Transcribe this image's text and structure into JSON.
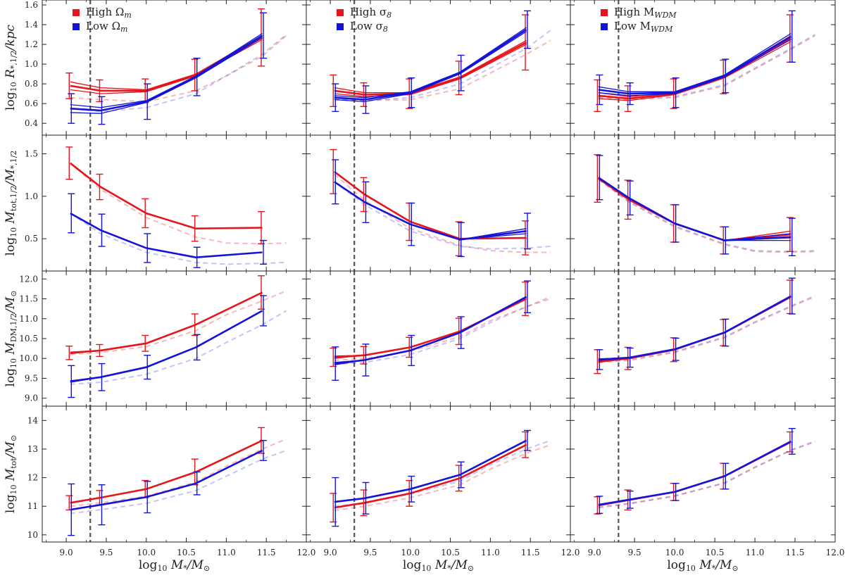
{
  "chart_data": {
    "type": "line",
    "layout": "grid 4 rows x 3 columns, shared x axis",
    "colors": {
      "high": "#e8141c",
      "low": "#1414d8",
      "threshold": "#555555"
    },
    "x": [
      9.05,
      9.43,
      10.0,
      10.62,
      11.45
    ],
    "xlim": [
      8.7,
      12.0
    ],
    "xticks": [
      9.0,
      9.5,
      10.0,
      10.5,
      11.0,
      11.5,
      12.0
    ],
    "xtick_labels": [
      "9.0",
      "9.5",
      "10.0",
      "10.5",
      "11.0",
      "11.5",
      "12.0"
    ],
    "xlabel": {
      "pre": "log",
      "sub": "10",
      "main": " M",
      "main_sub": "*",
      "post": "/M",
      "post_sub": "⊙"
    },
    "threshold_x": 9.3,
    "columns": [
      {
        "legend": [
          {
            "main": "High Ω",
            "sub": "m"
          },
          {
            "main": "Low Ω",
            "sub": "m"
          }
        ]
      },
      {
        "legend": [
          {
            "main": "High σ",
            "sub": "8"
          },
          {
            "main": "Low σ",
            "sub": "8"
          }
        ]
      },
      {
        "legend": [
          {
            "main": "High M",
            "sub": "WDM"
          },
          {
            "main": "Low M",
            "sub": "WDM"
          }
        ]
      }
    ],
    "ref_x": [
      9.05,
      9.43,
      10.0,
      10.62,
      11.0,
      11.45,
      11.75
    ],
    "rows": [
      {
        "ylabel": {
          "pre": "log",
          "sub": "10",
          "main": " R",
          "main_sub": "*,1/2",
          "post": "/kpc",
          "post_sub": ""
        },
        "ylim": [
          0.28,
          1.65
        ],
        "yticks": [
          0.4,
          0.6,
          0.8,
          1.0,
          1.2,
          1.4,
          1.6
        ],
        "ytick_labels": [
          "0.4",
          "0.6",
          "0.8",
          "1.0",
          "1.2",
          "1.4",
          "1.6"
        ],
        "panels": [
          {
            "high": {
              "values": [
                0.78,
                0.73,
                0.73,
                0.89,
                1.27
              ],
              "spread": [
                0.04,
                0.03,
                0.01,
                0.01,
                0.02
              ],
              "err": [
                0.13,
                0.11,
                0.12,
                0.16,
                0.29
              ]
            },
            "low": {
              "values": [
                0.55,
                0.53,
                0.62,
                0.87,
                1.29
              ],
              "spread": [
                0.04,
                0.03,
                0.01,
                0.01,
                0.02
              ],
              "err": [
                0.15,
                0.14,
                0.18,
                0.19,
                0.23
              ]
            },
            "ref_high": [
              0.66,
              0.64,
              0.62,
              0.73,
              0.88,
              1.08,
              1.29
            ],
            "ref_low": [
              0.55,
              0.52,
              0.56,
              0.7,
              0.88,
              1.1,
              1.3
            ]
          },
          {
            "high": {
              "values": [
                0.73,
                0.69,
                0.7,
                0.86,
                1.22
              ],
              "spread": [
                0.03,
                0.02,
                0.01,
                0.01,
                0.02
              ],
              "err": [
                0.16,
                0.12,
                0.15,
                0.17,
                0.28
              ]
            },
            "low": {
              "values": [
                0.66,
                0.64,
                0.71,
                0.91,
                1.35
              ],
              "spread": [
                0.02,
                0.02,
                0.01,
                0.01,
                0.02
              ],
              "err": [
                0.14,
                0.14,
                0.15,
                0.18,
                0.19
              ]
            },
            "ref_high": [
              0.64,
              0.63,
              0.64,
              0.75,
              0.91,
              1.1,
              1.24
            ],
            "ref_low": [
              0.64,
              0.63,
              0.66,
              0.8,
              0.96,
              1.16,
              1.34
            ]
          },
          {
            "high": {
              "values": [
                0.68,
                0.65,
                0.7,
                0.87,
                1.26
              ],
              "spread": [
                0.03,
                0.02,
                0.01,
                0.01,
                0.03
              ],
              "err": [
                0.16,
                0.13,
                0.15,
                0.17,
                0.24
              ]
            },
            "low": {
              "values": [
                0.74,
                0.7,
                0.71,
                0.88,
                1.28
              ],
              "spread": [
                0.03,
                0.02,
                0.01,
                0.01,
                0.03
              ],
              "err": [
                0.15,
                0.11,
                0.15,
                0.17,
                0.26
              ]
            },
            "ref_high": [
              0.66,
              0.64,
              0.66,
              0.78,
              0.95,
              1.15,
              1.29
            ],
            "ref_low": [
              0.67,
              0.65,
              0.67,
              0.79,
              0.96,
              1.16,
              1.3
            ]
          }
        ]
      },
      {
        "ylabel": {
          "pre": "log",
          "sub": "10",
          "main": " M",
          "main_sub": "tot,1/2",
          "post": "/M",
          "post_sub": "*,1/2"
        },
        "ylim": [
          0.12,
          1.72
        ],
        "yticks": [
          0.5,
          1.0,
          1.5
        ],
        "ytick_labels": [
          "0.5",
          "1.0",
          "1.5"
        ],
        "panels": [
          {
            "high": {
              "values": [
                1.39,
                1.11,
                0.8,
                0.62,
                0.63
              ],
              "spread": [
                0.0,
                0.0,
                0.0,
                0.0,
                0.0
              ],
              "err": [
                0.19,
                0.15,
                0.17,
                0.15,
                0.19
              ]
            },
            "low": {
              "values": [
                0.8,
                0.6,
                0.39,
                0.28,
                0.34
              ],
              "spread": [
                0.0,
                0.0,
                0.0,
                0.0,
                0.0
              ],
              "err": [
                0.23,
                0.19,
                0.17,
                0.12,
                0.14
              ]
            },
            "ref_high": [
              1.39,
              1.08,
              0.75,
              0.52,
              0.45,
              0.44,
              0.45
            ],
            "ref_low": [
              0.8,
              0.56,
              0.34,
              0.22,
              0.2,
              0.21,
              0.22
            ]
          },
          {
            "high": {
              "values": [
                1.29,
                1.02,
                0.7,
                0.5,
                0.51
              ],
              "spread": [
                0.0,
                0.0,
                0.0,
                0.0,
                0.0
              ],
              "err": [
                0.26,
                0.2,
                0.22,
                0.2,
                0.2
              ]
            },
            "low": {
              "values": [
                1.17,
                0.93,
                0.67,
                0.49,
                0.59
              ],
              "spread": [
                0.0,
                0.0,
                0.0,
                0.0,
                0.03
              ],
              "err": [
                0.26,
                0.24,
                0.25,
                0.2,
                0.21
              ]
            },
            "ref_high": [
              1.26,
              0.95,
              0.62,
              0.42,
              0.36,
              0.34,
              0.34
            ],
            "ref_low": [
              1.17,
              0.9,
              0.59,
              0.41,
              0.38,
              0.39,
              0.41
            ]
          },
          {
            "high": {
              "values": [
                1.21,
                0.96,
                0.68,
                0.48,
                0.55
              ],
              "spread": [
                0.0,
                0.0,
                0.0,
                0.0,
                0.04
              ],
              "err": [
                0.28,
                0.23,
                0.22,
                0.16,
                0.2
              ]
            },
            "low": {
              "values": [
                1.22,
                0.98,
                0.68,
                0.48,
                0.52
              ],
              "spread": [
                0.0,
                0.0,
                0.0,
                0.0,
                0.04
              ],
              "err": [
                0.26,
                0.2,
                0.22,
                0.16,
                0.22
              ]
            },
            "ref_high": [
              1.2,
              0.93,
              0.64,
              0.43,
              0.35,
              0.34,
              0.35
            ],
            "ref_low": [
              1.2,
              0.94,
              0.65,
              0.44,
              0.36,
              0.35,
              0.36
            ]
          }
        ]
      },
      {
        "ylabel": {
          "pre": "log",
          "sub": "10",
          "main": " M",
          "main_sub": "DM,1/2",
          "post": "/M",
          "post_sub": "⊙"
        },
        "ylim": [
          8.8,
          12.2
        ],
        "yticks": [
          9.0,
          9.5,
          10.0,
          10.5,
          11.0,
          11.5,
          12.0
        ],
        "ytick_labels": [
          "9.0",
          "9.5",
          "10.0",
          "10.5",
          "11.0",
          "11.5",
          "12.0"
        ],
        "panels": [
          {
            "high": {
              "values": [
                10.14,
                10.2,
                10.38,
                10.85,
                11.66
              ],
              "spread": [
                0.02,
                0.0,
                0.0,
                0.0,
                0.0
              ],
              "err": [
                0.17,
                0.15,
                0.2,
                0.27,
                0.42
              ]
            },
            "low": {
              "values": [
                9.42,
                9.53,
                9.78,
                10.28,
                11.2
              ],
              "spread": [
                0.02,
                0.0,
                0.0,
                0.0,
                0.0
              ],
              "err": [
                0.4,
                0.34,
                0.3,
                0.32,
                0.38
              ]
            },
            "ref_high": [
              10.1,
              10.15,
              10.3,
              10.7,
              11.1,
              11.45,
              11.7
            ],
            "ref_low": [
              9.35,
              9.4,
              9.6,
              10.0,
              10.4,
              10.85,
              11.2
            ]
          },
          {
            "high": {
              "values": [
                10.03,
                10.08,
                10.28,
                10.68,
                11.5
              ],
              "spread": [
                0.03,
                0.0,
                0.0,
                0.0,
                0.0
              ],
              "err": [
                0.23,
                0.22,
                0.25,
                0.33,
                0.42
              ]
            },
            "low": {
              "values": [
                9.87,
                9.96,
                10.2,
                10.65,
                11.55
              ],
              "spread": [
                0.03,
                0.0,
                0.0,
                0.0,
                0.0
              ],
              "err": [
                0.42,
                0.4,
                0.38,
                0.4,
                0.4
              ]
            },
            "ref_high": [
              9.95,
              10.0,
              10.18,
              10.55,
              10.95,
              11.3,
              11.5
            ],
            "ref_low": [
              9.85,
              9.9,
              10.1,
              10.5,
              10.9,
              11.3,
              11.55
            ]
          },
          {
            "high": {
              "values": [
                9.92,
                10.0,
                10.22,
                10.65,
                11.55
              ],
              "spread": [
                0.02,
                0.0,
                0.0,
                0.0,
                0.0
              ],
              "err": [
                0.3,
                0.28,
                0.3,
                0.33,
                0.42
              ]
            },
            "low": {
              "values": [
                9.97,
                10.02,
                10.23,
                10.65,
                11.57
              ],
              "spread": [
                0.02,
                0.0,
                0.0,
                0.0,
                0.0
              ],
              "err": [
                0.25,
                0.24,
                0.28,
                0.34,
                0.45
              ]
            },
            "ref_high": [
              9.9,
              9.95,
              10.15,
              10.52,
              10.9,
              11.3,
              11.55
            ],
            "ref_low": [
              9.92,
              9.97,
              10.17,
              10.54,
              10.92,
              11.32,
              11.58
            ]
          }
        ]
      },
      {
        "ylabel": {
          "pre": "log",
          "sub": "10",
          "main": " M",
          "main_sub": "tot",
          "post": "/M",
          "post_sub": "⊙"
        },
        "ylim": [
          9.75,
          14.5
        ],
        "yticks": [
          10,
          11,
          12,
          13,
          14
        ],
        "ytick_labels": [
          "10",
          "11",
          "12",
          "13",
          "14"
        ],
        "panels": [
          {
            "high": {
              "values": [
                11.12,
                11.3,
                11.6,
                12.2,
                13.3
              ],
              "spread": [
                0.0,
                0.0,
                0.0,
                0.0,
                0.0
              ],
              "err": [
                0.25,
                0.25,
                0.3,
                0.45,
                0.45
              ]
            },
            "low": {
              "values": [
                10.88,
                11.05,
                11.32,
                11.8,
                12.95
              ],
              "spread": [
                0.0,
                0.0,
                0.0,
                0.0,
                0.0
              ],
              "err": [
                0.9,
                0.7,
                0.55,
                0.4,
                0.35
              ]
            },
            "ref_high": [
              11.0,
              11.12,
              11.35,
              11.85,
              12.4,
              13.0,
              13.35
            ],
            "ref_low": [
              10.75,
              10.88,
              11.1,
              11.55,
              12.05,
              12.65,
              12.95
            ]
          },
          {
            "high": {
              "values": [
                10.95,
                11.12,
                11.45,
                11.98,
                13.15
              ],
              "spread": [
                0.0,
                0.0,
                0.0,
                0.0,
                0.0
              ],
              "err": [
                0.5,
                0.45,
                0.45,
                0.45,
                0.45
              ]
            },
            "low": {
              "values": [
                11.15,
                11.28,
                11.6,
                12.1,
                13.3
              ],
              "spread": [
                0.0,
                0.0,
                0.0,
                0.0,
                0.0
              ],
              "err": [
                0.85,
                0.55,
                0.45,
                0.45,
                0.35
              ]
            },
            "ref_high": [
              10.85,
              11.0,
              11.3,
              11.75,
              12.3,
              12.85,
              13.15
            ],
            "ref_low": [
              11.0,
              11.12,
              11.42,
              11.88,
              12.45,
              13.0,
              13.3
            ]
          },
          {
            "high": {
              "values": [
                11.03,
                11.22,
                11.5,
                12.05,
                13.25
              ],
              "spread": [
                0.0,
                0.0,
                0.0,
                0.0,
                0.0
              ],
              "err": [
                0.3,
                0.35,
                0.3,
                0.45,
                0.35
              ]
            },
            "low": {
              "values": [
                11.05,
                11.23,
                11.5,
                12.05,
                13.27
              ],
              "spread": [
                0.0,
                0.0,
                0.0,
                0.0,
                0.0
              ],
              "err": [
                0.3,
                0.3,
                0.3,
                0.45,
                0.45
              ]
            },
            "ref_high": [
              10.95,
              11.08,
              11.35,
              11.8,
              12.35,
              12.95,
              13.25
            ],
            "ref_low": [
              10.97,
              11.1,
              11.37,
              11.82,
              12.37,
              12.97,
              13.28
            ]
          }
        ]
      }
    ]
  }
}
